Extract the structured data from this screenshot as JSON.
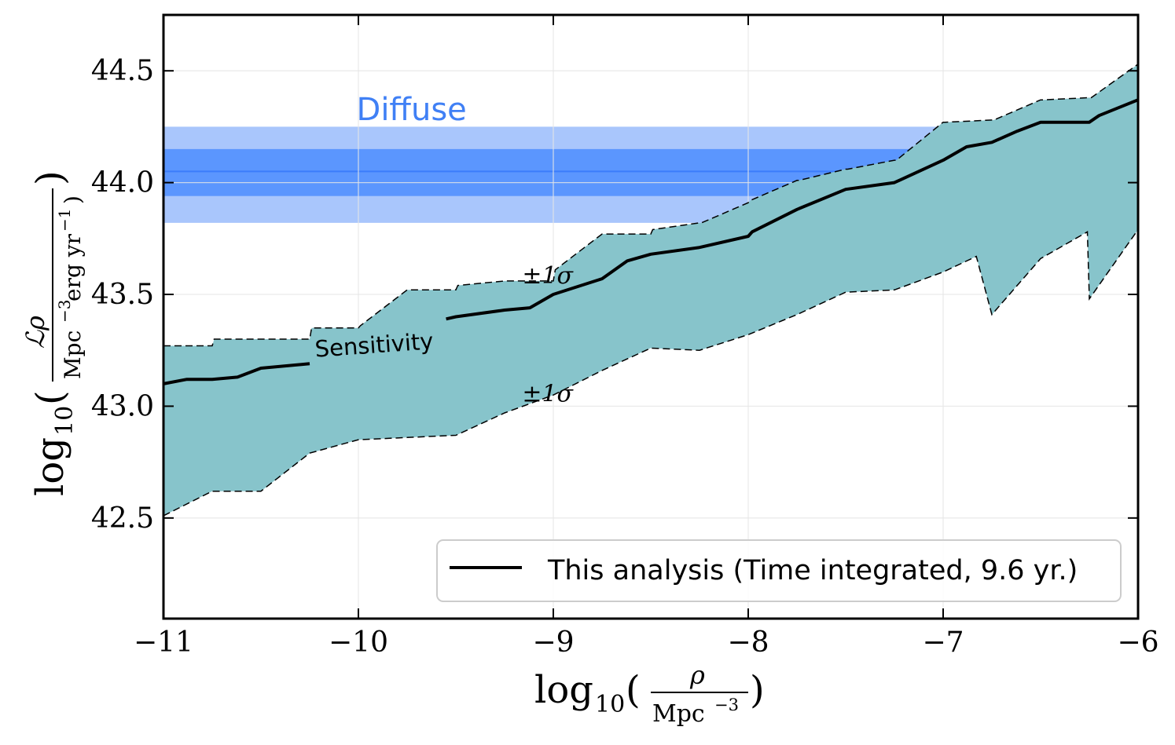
{
  "chart_data": {
    "type": "line",
    "xlabel": "log10(ρ / Mpc⁻³)",
    "ylabel": "log10(ℒρ / Mpc⁻³ erg yr⁻¹)",
    "xlim": [
      -11,
      -6
    ],
    "ylim": [
      42.05,
      44.75
    ],
    "x_ticks": [
      -11,
      -10,
      -9,
      -8,
      -7,
      -6
    ],
    "x_tick_labels": [
      "−11",
      "−10",
      "−9",
      "−8",
      "−7",
      "−6"
    ],
    "y_ticks": [
      42.5,
      43.0,
      43.5,
      44.0,
      44.5
    ],
    "y_tick_labels": [
      "42.5",
      "43.0",
      "43.5",
      "44.0",
      "44.5"
    ],
    "grid": true,
    "legend": {
      "position": "bottom-right",
      "label": "This analysis (Time integrated, 9.6 yr.)"
    },
    "annotations": {
      "diffuse": "Diffuse",
      "sensitivity": "Sensitivity",
      "sigma_upper": "±1σ",
      "sigma_lower": "±1σ"
    },
    "diffuse_band": {
      "central": 44.05,
      "inner": [
        43.94,
        44.15
      ],
      "outer": [
        43.82,
        44.25
      ]
    },
    "series": [
      {
        "name": "This analysis (Time integrated, 9.6 yr.)",
        "segments": [
          {
            "x": [
              -11.0,
              -10.88,
              -10.75,
              -10.62,
              -10.5,
              -10.25
            ],
            "y": [
              43.1,
              43.12,
              43.12,
              43.13,
              43.17,
              43.19
            ]
          },
          {
            "x": [
              -9.55,
              -9.5,
              -9.25,
              -9.12,
              -9.0,
              -8.75,
              -8.62,
              -8.5,
              -8.25,
              -8.0,
              -7.98,
              -7.75,
              -7.5,
              -7.25,
              -7.0,
              -6.88,
              -6.75,
              -6.62,
              -6.5,
              -6.25,
              -6.2,
              -6.0
            ],
            "y": [
              43.39,
              43.4,
              43.43,
              43.44,
              43.5,
              43.57,
              43.65,
              43.68,
              43.71,
              43.76,
              43.78,
              43.88,
              43.97,
              44.0,
              44.1,
              44.16,
              44.18,
              44.23,
              44.27,
              44.27,
              44.3,
              44.37
            ]
          }
        ]
      }
    ],
    "band": {
      "name": "±1σ",
      "upper": {
        "x": [
          -11.0,
          -10.75,
          -10.74,
          -10.25,
          -10.24,
          -10.0,
          -9.99,
          -9.75,
          -9.74,
          -9.5,
          -9.49,
          -9.25,
          -9.24,
          -9.0,
          -8.99,
          -8.75,
          -8.74,
          -8.5,
          -8.49,
          -8.25,
          -8.24,
          -8.0,
          -7.99,
          -7.75,
          -7.74,
          -7.5,
          -7.49,
          -7.25,
          -7.24,
          -7.0,
          -6.99,
          -6.75,
          -6.74,
          -6.5,
          -6.49,
          -6.25,
          -6.24,
          -6.0
        ],
        "y": [
          43.27,
          43.27,
          43.3,
          43.3,
          43.35,
          43.35,
          43.36,
          43.52,
          43.52,
          43.52,
          43.54,
          43.56,
          43.56,
          43.56,
          43.61,
          43.77,
          43.77,
          43.77,
          43.79,
          43.82,
          43.82,
          43.91,
          43.92,
          44.01,
          44.01,
          44.06,
          44.06,
          44.1,
          44.1,
          44.27,
          44.27,
          44.28,
          44.28,
          44.37,
          44.37,
          44.38,
          44.38,
          44.53
        ]
      },
      "lower": {
        "x": [
          -11.0,
          -10.75,
          -10.5,
          -10.25,
          -10.0,
          -9.75,
          -9.5,
          -9.25,
          -9.0,
          -8.75,
          -8.5,
          -8.25,
          -8.0,
          -7.75,
          -7.5,
          -7.25,
          -7.0,
          -6.83,
          -6.75,
          -6.5,
          -6.26,
          -6.25,
          -6.0
        ],
        "y": [
          42.51,
          42.62,
          42.62,
          42.79,
          42.85,
          42.86,
          42.87,
          42.97,
          43.05,
          43.16,
          43.26,
          43.25,
          43.32,
          43.41,
          43.51,
          43.52,
          43.6,
          43.67,
          43.41,
          43.66,
          43.78,
          43.48,
          43.79
        ]
      }
    },
    "colors": {
      "band_fill": "#87c4cb",
      "diffuse_outer": "#a9c6fc",
      "diffuse_inner": "#5b96fe",
      "diffuse_line": "#3b7dfb",
      "diffuse_text": "#4080f5",
      "line": "#000000",
      "grid": "#e6e6e6"
    }
  }
}
